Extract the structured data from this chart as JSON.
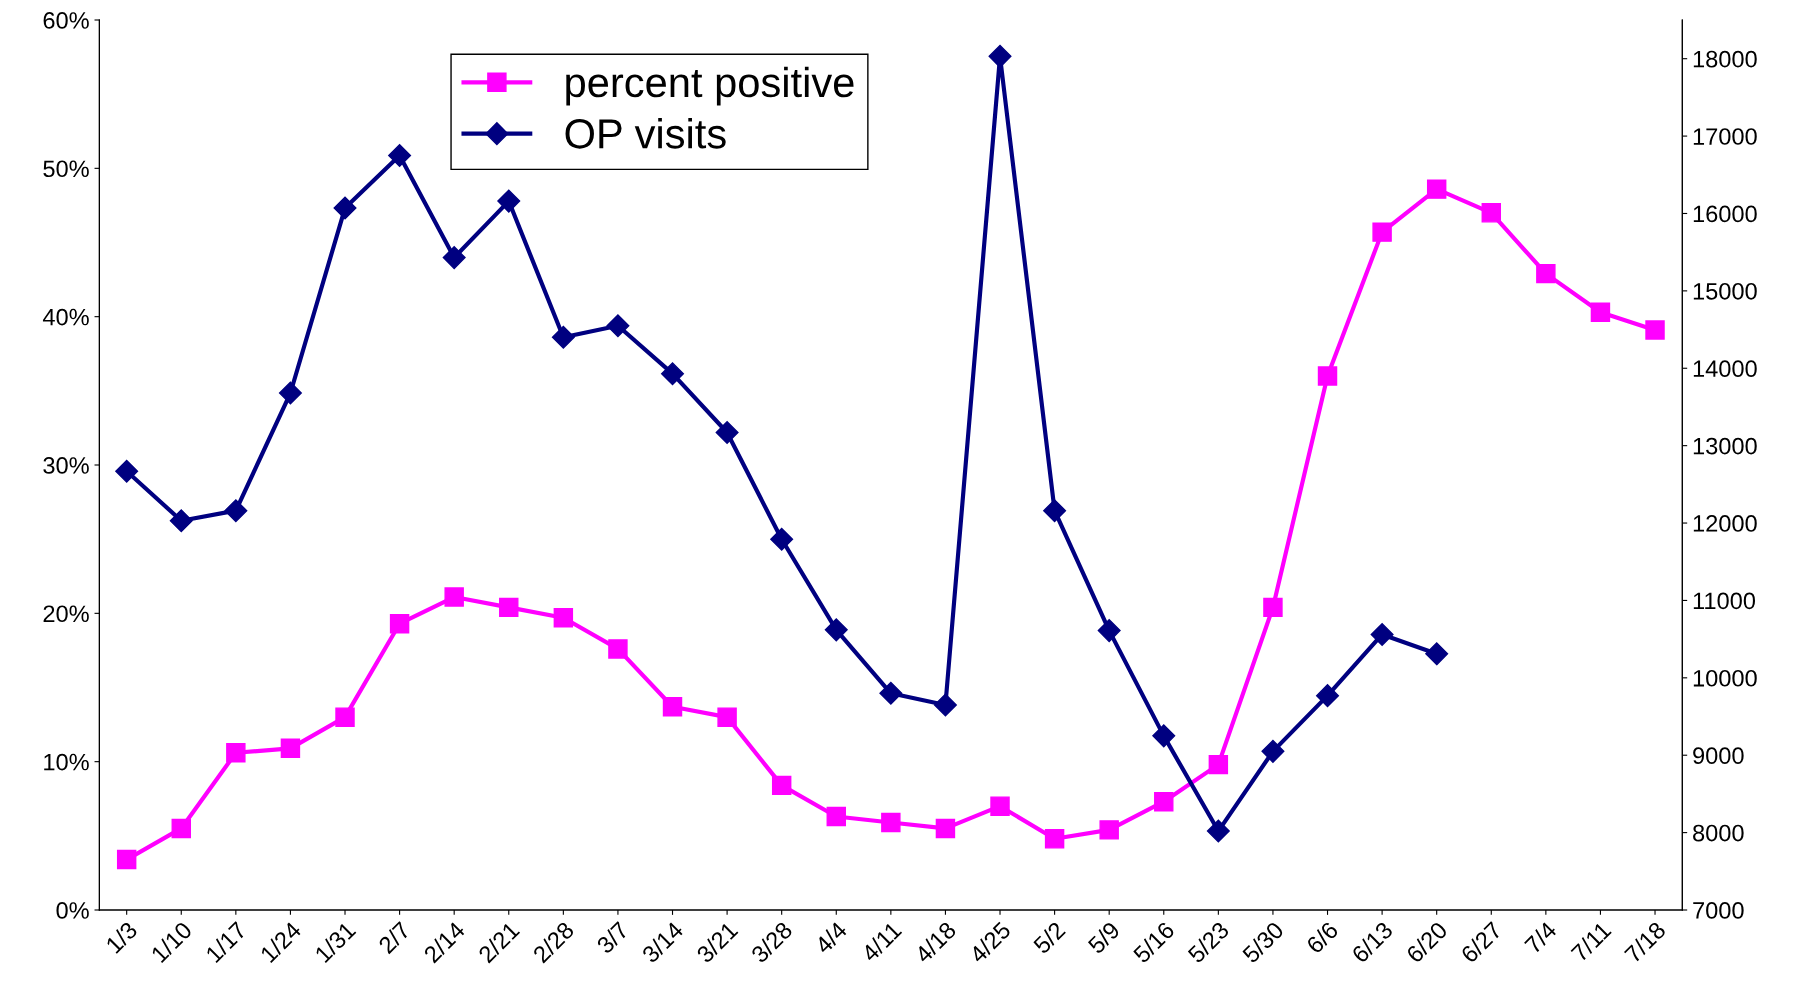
{
  "chart_data": {
    "type": "line",
    "categories": [
      "1/3",
      "1/10",
      "1/17",
      "1/24",
      "1/31",
      "2/7",
      "2/14",
      "2/21",
      "2/28",
      "3/7",
      "3/14",
      "3/21",
      "3/28",
      "4/4",
      "4/11",
      "4/18",
      "4/25",
      "5/2",
      "5/9",
      "5/16",
      "5/23",
      "5/30",
      "6/6",
      "6/13",
      "6/20",
      "6/27",
      "7/4",
      "7/11",
      "7/18"
    ],
    "series": [
      {
        "name": "percent positive",
        "color": "#ff00ff",
        "marker": "square",
        "values": [
          3.4,
          5.5,
          10.6,
          10.9,
          13.0,
          19.3,
          21.1,
          20.4,
          19.7,
          17.6,
          13.7,
          13.0,
          8.4,
          6.3,
          5.9,
          5.5,
          7.0,
          4.8,
          5.4,
          7.3,
          9.8,
          20.4,
          36.0,
          45.7,
          48.6,
          47.0,
          42.9,
          40.3,
          39.1
        ]
      },
      {
        "name": "OP visits",
        "color": "#000080",
        "marker": "diamond",
        "axis": "y2",
        "values": [
          12670,
          12030,
          12160,
          13680,
          16070,
          16750,
          15430,
          16160,
          14400,
          14550,
          13930,
          13170,
          11790,
          10620,
          9800,
          9650,
          18030,
          12160,
          10610,
          9250,
          8020,
          9050,
          9770,
          10560,
          10310,
          null,
          null,
          null,
          null
        ]
      }
    ],
    "ylim": [
      0,
      60
    ],
    "yticks": [
      {
        "value": 0,
        "label": "0%"
      },
      {
        "value": 10,
        "label": "10%"
      },
      {
        "value": 20,
        "label": "20%"
      },
      {
        "value": 30,
        "label": "30%"
      },
      {
        "value": 40,
        "label": "40%"
      },
      {
        "value": 50,
        "label": "50%"
      },
      {
        "value": 60,
        "label": "60%"
      }
    ],
    "y2lim": [
      7000,
      18500
    ],
    "y2ticks": [
      7000,
      8000,
      9000,
      10000,
      11000,
      12000,
      13000,
      14000,
      15000,
      16000,
      17000,
      18000
    ],
    "grid": false,
    "legend": "top left",
    "line_style": "solid"
  }
}
